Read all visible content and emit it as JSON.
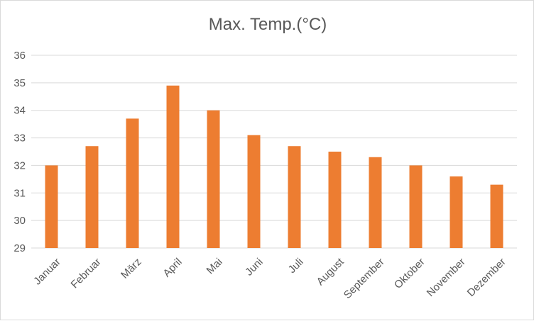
{
  "chart_data": {
    "type": "bar",
    "title": "Max. Temp.(°C)",
    "categories": [
      "Januar",
      "Februar",
      "März",
      "April",
      "Mai",
      "Juni",
      "Juli",
      "August",
      "September",
      "Oktober",
      "November",
      "Dezember"
    ],
    "values": [
      32.0,
      32.7,
      33.7,
      34.9,
      34.0,
      33.1,
      32.7,
      32.5,
      32.3,
      32.0,
      31.6,
      31.3
    ],
    "ylim": [
      29,
      36
    ],
    "yticks": [
      29,
      30,
      31,
      32,
      33,
      34,
      35,
      36
    ],
    "grid": true,
    "bar_color": "#ed7d31",
    "gridline_color": "#d9d9d9"
  }
}
